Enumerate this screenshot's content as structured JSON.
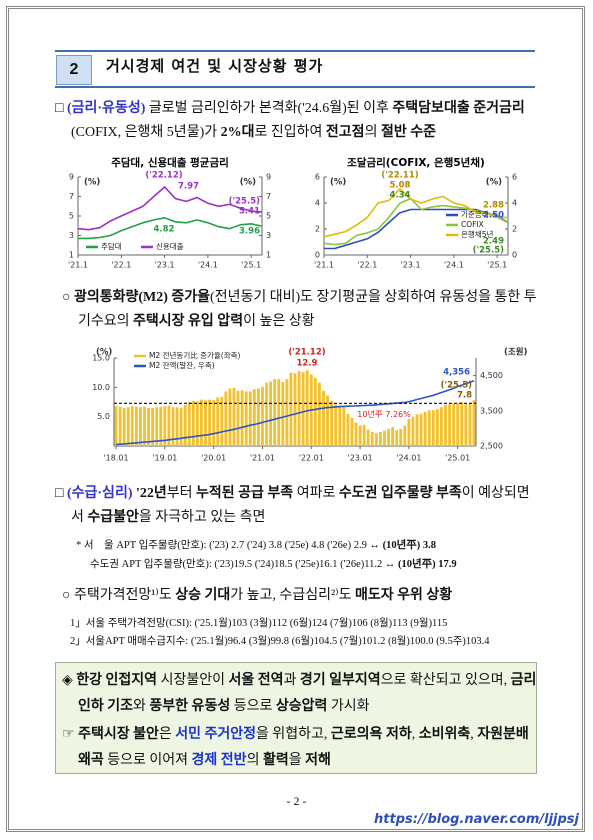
{
  "header": {
    "number": "2",
    "title": "거시경제 여건 및 시장상황 평가"
  },
  "intro": {
    "runs": [
      {
        "text": "□ "
      },
      {
        "text": "(금리·유동성)",
        "bold": true,
        "color": "#3333cc"
      },
      {
        "text": " 글로벌 금리인하가 본격화('24.6월)된 이후 "
      },
      {
        "text": "주택담보대출 준거금리",
        "bold": true
      },
      {
        "text": "(COFIX, 은행채 5년물)가 "
      },
      {
        "text": "2%대",
        "bold": true
      },
      {
        "text": "로 진입하여 "
      },
      {
        "text": "전고점",
        "bold": true
      },
      {
        "text": "의 "
      },
      {
        "text": "절반 수준",
        "bold": true
      }
    ]
  },
  "m2_paragraph": {
    "runs": [
      {
        "text": "○ "
      },
      {
        "text": "광의통화량(M2) 증가율",
        "bold": true
      },
      {
        "text": "(전년동기 대비)도 장기평균을 상회하여 유동성을 통한 투기수요의 "
      },
      {
        "text": "주택시장 유입 압력",
        "bold": true
      },
      {
        "text": "이 높은 상황"
      }
    ]
  },
  "supply_paragraph": {
    "runs": [
      {
        "text": "□ "
      },
      {
        "text": "(수급·심리)",
        "bold": true,
        "color": "#3333cc"
      },
      {
        "text": " "
      },
      {
        "text": "'22년",
        "bold": true
      },
      {
        "text": "부터 "
      },
      {
        "text": "누적된 공급 부족",
        "bold": true
      },
      {
        "text": " 여파로 "
      },
      {
        "text": "수도권 입주물량 부족",
        "bold": true
      },
      {
        "text": "이 예상되면서 "
      },
      {
        "text": "수급불안",
        "bold": true
      },
      {
        "text": "을 자극하고 있는 측면"
      }
    ]
  },
  "supply_notes": [
    {
      "runs": [
        {
          "text": "* 서　울 APT 입주물량(만호): ('23) 2.7 ('24) 3.8 ('25e) 4.8 ('26e) 2.9 ↔ "
        },
        {
          "text": "(10년平) 3.8",
          "bold": true
        }
      ]
    },
    {
      "runs": [
        {
          "text": "수도권 APT 입주물량(만호): ('23)19.5 ('24)18.5 ('25e)16.1 ('26e)11.2 ↔ "
        },
        {
          "text": "(10년平) 17.9",
          "bold": true
        }
      ]
    }
  ],
  "outlook_paragraph": {
    "runs": [
      {
        "text": "○ 주택가격전망¹⁾도 "
      },
      {
        "text": "상승 기대",
        "bold": true
      },
      {
        "text": "가 높고, 수급심리²⁾도 "
      },
      {
        "text": "매도자 우위 상황",
        "bold": true
      }
    ]
  },
  "outlook_notes": [
    {
      "runs": [
        {
          "text": "1」서울 주택가격전망(CSI): ('25.1월)103 (3월)112 (6월)124 (7월)106 (8월)113 (9월)115"
        }
      ]
    },
    {
      "runs": [
        {
          "text": "2」서울APT 매매수급지수: ('25.1월)96.4 (3월)99.8 (6월)104.5 (7월)101.2 (8월)100.0 (9.5주)103.4"
        }
      ]
    }
  ],
  "summary": [
    {
      "runs": [
        {
          "text": "◈ "
        },
        {
          "text": "한강 인접지역",
          "bold": true
        },
        {
          "text": " 시장불안이 "
        },
        {
          "text": "서울 전역",
          "bold": true
        },
        {
          "text": "과 "
        },
        {
          "text": "경기 일부지역",
          "bold": true
        },
        {
          "text": "으로 확산되고 있으며, "
        },
        {
          "text": "금리인하 기조",
          "bold": true
        },
        {
          "text": "와 "
        },
        {
          "text": "풍부한 유동성",
          "bold": true
        },
        {
          "text": " 등으로 "
        },
        {
          "text": "상승압력",
          "bold": true
        },
        {
          "text": " 가시화"
        }
      ]
    },
    {
      "runs": [
        {
          "text": "☞ "
        },
        {
          "text": "주택시장 불안",
          "bold": true
        },
        {
          "text": "은 "
        },
        {
          "text": "서민 주거안정",
          "bold": true,
          "color": "#1a33cc"
        },
        {
          "text": "을 위협하고, "
        },
        {
          "text": "근로의욕 저하",
          "bold": true
        },
        {
          "text": ", "
        },
        {
          "text": "소비위축",
          "bold": true
        },
        {
          "text": ", "
        },
        {
          "text": "자원분배 왜곡",
          "bold": true
        },
        {
          "text": " 등으로 이어져 "
        },
        {
          "text": "경제 전반",
          "bold": true,
          "color": "#1a33cc"
        },
        {
          "text": "의 "
        },
        {
          "text": "활력",
          "bold": true
        },
        {
          "text": "을 "
        },
        {
          "text": "저해",
          "bold": true
        }
      ]
    }
  ],
  "page_number": "- 2 -",
  "watermark": "https://blog.naver.com/ljjpsj",
  "chart_data": [
    {
      "type": "line",
      "title": "주담대, 신용대출 평균금리",
      "categories": [
        "'21.1",
        null,
        null,
        null,
        "'22.1",
        null,
        null,
        null,
        "'23.1",
        null,
        null,
        null,
        "'24.1",
        null,
        null,
        null,
        "'25.1",
        null
      ],
      "series": [
        {
          "name": "주담대",
          "color": "#22a045",
          "values": [
            2.7,
            2.7,
            2.8,
            3.0,
            3.5,
            3.9,
            4.3,
            4.6,
            4.82,
            4.4,
            4.3,
            4.6,
            4.3,
            3.9,
            3.7,
            4.1,
            4.2,
            3.96
          ]
        },
        {
          "name": "신용대출",
          "color": "#9b30c8",
          "values": [
            3.7,
            3.6,
            3.8,
            4.5,
            5.0,
            5.5,
            6.0,
            7.0,
            7.97,
            6.8,
            6.5,
            6.9,
            6.3,
            6.0,
            6.2,
            5.8,
            5.5,
            5.41
          ]
        }
      ],
      "ylim": [
        1,
        9
      ],
      "yticks": [
        1,
        3,
        5,
        7,
        9
      ],
      "y2lim": [
        1,
        9
      ],
      "y2ticks": [
        1,
        3,
        5,
        7,
        9
      ],
      "annotations": [
        {
          "text": "(%)",
          "color": "#333333"
        },
        {
          "text": "(%)",
          "color": "#333333"
        },
        {
          "text": "('22.12)",
          "color": "#9b30c8"
        },
        {
          "text": "7.97",
          "color": "#9b30c8"
        },
        {
          "text": "4.82",
          "color": "#22a045"
        },
        {
          "text": "('25.5)",
          "color": "#9b30c8"
        },
        {
          "text": "5.41",
          "color": "#9b30c8"
        },
        {
          "text": "3.96",
          "color": "#22a045"
        }
      ]
    },
    {
      "type": "line",
      "title": "조달금리(COFIX, 은행5년채)",
      "categories": [
        "'21.1",
        null,
        null,
        null,
        "'22.1",
        null,
        null,
        null,
        "'23.1",
        null,
        null,
        null,
        "'24.1",
        null,
        null,
        null,
        "'25.1",
        null
      ],
      "series": [
        {
          "name": "기준금리",
          "color": "#2b4fc0",
          "values": [
            0.5,
            0.5,
            0.75,
            1.0,
            1.25,
            1.75,
            2.5,
            3.25,
            3.5,
            3.5,
            3.5,
            3.5,
            3.5,
            3.5,
            3.5,
            3.25,
            3.0,
            2.5
          ]
        },
        {
          "name": "COFIX",
          "color": "#8cc63f",
          "values": [
            0.9,
            0.8,
            0.9,
            1.5,
            1.7,
            2.0,
            2.9,
            3.98,
            4.34,
            3.5,
            3.7,
            3.8,
            3.7,
            3.6,
            3.4,
            3.3,
            2.9,
            2.49
          ]
        },
        {
          "name": "은행채5년",
          "color": "#e6b800",
          "values": [
            1.4,
            1.6,
            1.8,
            2.3,
            2.9,
            4.0,
            4.2,
            5.08,
            4.3,
            4.0,
            4.3,
            4.5,
            4.0,
            3.8,
            3.3,
            3.2,
            2.9,
            2.88
          ]
        }
      ],
      "ylim": [
        0,
        6
      ],
      "yticks": [
        0,
        2,
        4,
        6
      ],
      "y2lim": [
        0,
        6
      ],
      "y2ticks": [
        0,
        2,
        4,
        6
      ],
      "annotations": [
        {
          "text": "(%)",
          "color": "#333333"
        },
        {
          "text": "(%)",
          "color": "#333333"
        },
        {
          "text": "('22.11)",
          "color": "#b08a00"
        },
        {
          "text": "5.08",
          "color": "#b08a00"
        },
        {
          "text": "4.34",
          "color": "#3a8a20"
        },
        {
          "text": "2.88",
          "color": "#b08a00"
        },
        {
          "text": "2.50",
          "color": "#2b4fc0"
        },
        {
          "text": "2.49",
          "color": "#3a8a20"
        },
        {
          "text": "('25.5)",
          "color": "#3a8a20"
        }
      ]
    },
    {
      "type": "bar",
      "categories": [
        "'18.01",
        null,
        null,
        null,
        null,
        null,
        null,
        null,
        null,
        null,
        null,
        null,
        "'19.01",
        null,
        null,
        null,
        null,
        null,
        null,
        null,
        null,
        null,
        null,
        null,
        "'20.01",
        null,
        null,
        null,
        null,
        null,
        null,
        null,
        null,
        null,
        null,
        null,
        "'21.01",
        null,
        null,
        null,
        null,
        null,
        null,
        null,
        null,
        null,
        null,
        null,
        "'22.01",
        null,
        null,
        null,
        null,
        null,
        null,
        null,
        null,
        null,
        null,
        null,
        "'23.01",
        null,
        null,
        null,
        null,
        null,
        null,
        null,
        null,
        null,
        null,
        null,
        "'24.01",
        null,
        null,
        null,
        null,
        null,
        null,
        null,
        null,
        null,
        null,
        null,
        "'25.01",
        null,
        null,
        null,
        null
      ],
      "series": [
        {
          "name": "M2 전년동기比 증가율(좌축)",
          "color": "#f2c12e",
          "values": [
            6.8,
            6.7,
            6.5,
            6.6,
            6.8,
            6.7,
            6.6,
            6.7,
            6.5,
            6.5,
            6.6,
            6.7,
            6.8,
            6.9,
            6.6,
            6.6,
            6.5,
            7.0,
            7.5,
            7.7,
            7.6,
            7.9,
            7.8,
            7.9,
            7.8,
            8.3,
            8.4,
            9.3,
            9.8,
            9.9,
            9.4,
            9.5,
            9.3,
            9.3,
            9.7,
            9.8,
            10.1,
            10.8,
            11.0,
            11.4,
            11.4,
            10.9,
            11.4,
            12.5,
            12.4,
            12.8,
            12.6,
            12.9,
            12.2,
            11.6,
            10.8,
            9.4,
            8.6,
            7.7,
            7.1,
            6.9,
            6.6,
            5.5,
            4.8,
            4.0,
            3.5,
            3.6,
            2.8,
            2.4,
            2.2,
            2.4,
            2.6,
            2.9,
            3.2,
            2.7,
            2.9,
            3.5,
            4.6,
            5.0,
            5.4,
            5.5,
            5.8,
            6.1,
            6.1,
            6.3,
            6.6,
            7.0,
            7.1,
            7.2,
            7.3,
            7.5,
            7.1,
            7.2,
            7.8
          ]
        },
        {
          "name": "M2 잔액(말잔, 우축)",
          "color": "#2b55c8",
          "axis": "y2",
          "values": [
            2540,
            2550,
            2560,
            2570,
            2580,
            2590,
            2600,
            2610,
            2620,
            2630,
            2640,
            2650,
            2660,
            2675,
            2690,
            2705,
            2720,
            2735,
            2750,
            2765,
            2780,
            2795,
            2810,
            2830,
            2850,
            2875,
            2900,
            2925,
            2950,
            2975,
            3000,
            3030,
            3060,
            3090,
            3110,
            3140,
            3170,
            3200,
            3230,
            3260,
            3290,
            3320,
            3350,
            3380,
            3410,
            3440,
            3470,
            3500,
            3520,
            3540,
            3560,
            3575,
            3590,
            3600,
            3610,
            3620,
            3625,
            3630,
            3635,
            3640,
            3645,
            3650,
            3655,
            3660,
            3670,
            3680,
            3690,
            3700,
            3710,
            3720,
            3730,
            3740,
            3760,
            3790,
            3820,
            3850,
            3880,
            3910,
            3940,
            3980,
            4020,
            4060,
            4100,
            4140,
            4190,
            4230,
            4270,
            4310,
            4356
          ]
        }
      ],
      "ylim": [
        0,
        15
      ],
      "yticks": [
        {
          "value": 5,
          "label": "5.0"
        },
        {
          "value": 10,
          "label": "10.0"
        },
        {
          "value": 15,
          "label": "15.0"
        }
      ],
      "y2lim": [
        2500,
        5000
      ],
      "y2ticks": [
        {
          "value": 2500,
          "label": "2,500"
        },
        {
          "value": 3500,
          "label": "3,500"
        },
        {
          "value": 4500,
          "label": "4,500"
        }
      ],
      "reference": {
        "value": 7.26,
        "label": "10년平 7.26%",
        "color": "#d42020"
      },
      "annotations": [
        {
          "text": "(%)",
          "color": "#333333"
        },
        {
          "text": "(조원)",
          "color": "#333333"
        },
        {
          "text": "('21.12)",
          "color": "#d42020"
        },
        {
          "text": "12.9",
          "color": "#d42020"
        },
        {
          "text": "4,356",
          "color": "#2b55c8"
        },
        {
          "text": "('25.5)",
          "color": "#8a5a00"
        },
        {
          "text": "7.8",
          "color": "#8a5a00"
        }
      ]
    }
  ]
}
